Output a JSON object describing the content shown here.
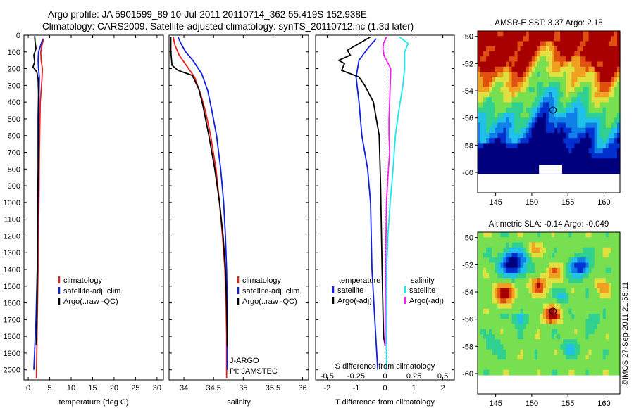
{
  "header": {
    "title_line1": "Argo profile: JA 5901599_89 10-Jul-2011 20110714_362 55.419S 152.938E",
    "title_line2": "Climatology: CARS2009. Satellite-adjusted climatology: synTS_20110712.nc (1.3d later)"
  },
  "colors": {
    "climatology": "#e8201c",
    "satellite": "#1020e0",
    "argo": "#000000",
    "sat_salinity": "#18e8f0",
    "argo_salinity": "#f020f0",
    "map_land_blank": "#ffffff"
  },
  "credit": "©IMOS 27-Sep-2011 21:55:11",
  "depth_ticks": [
    "0",
    "100",
    "200",
    "300",
    "400",
    "500",
    "600",
    "700",
    "800",
    "900",
    "1000",
    "1100",
    "1200",
    "1300",
    "1400",
    "1500",
    "1600",
    "1700",
    "1800",
    "1900",
    "2000"
  ],
  "chart_data": [
    {
      "id": "temperature",
      "type": "line",
      "xlabel": "temperature (deg C)",
      "xlim": [
        -1,
        31.5
      ],
      "ylim": [
        2060,
        0
      ],
      "xticks": [
        "0",
        "5",
        "10",
        "15",
        "20",
        "25",
        "30"
      ],
      "xtick_values": [
        0,
        5,
        10,
        15,
        20,
        25,
        30
      ],
      "legend": [
        {
          "label": "climatology",
          "color": "climatology"
        },
        {
          "label": "satellite-adj. clim.",
          "color": "satellite"
        },
        {
          "label": "Argo(..raw -QC)",
          "color": "argo"
        }
      ],
      "series": [
        {
          "name": "climatology",
          "color": "climatology",
          "points": [
            [
              3.6,
              20
            ],
            [
              3.2,
              60
            ],
            [
              2.9,
              100
            ],
            [
              3.0,
              150
            ],
            [
              3.3,
              200
            ],
            [
              3.2,
              260
            ],
            [
              2.8,
              400
            ],
            [
              2.6,
              700
            ],
            [
              2.5,
              1000
            ],
            [
              2.3,
              1400
            ],
            [
              2.1,
              1700
            ],
            [
              1.9,
              2050
            ]
          ]
        },
        {
          "name": "satellite-adj. clim.",
          "color": "satellite",
          "points": [
            [
              3.4,
              20
            ],
            [
              2.9,
              60
            ],
            [
              2.4,
              100
            ],
            [
              2.3,
              150
            ],
            [
              2.4,
              200
            ],
            [
              2.6,
              250
            ],
            [
              2.5,
              400
            ],
            [
              2.4,
              700
            ],
            [
              2.3,
              1000
            ],
            [
              2.1,
              1400
            ],
            [
              1.8,
              1700
            ],
            [
              1.3,
              2000
            ]
          ]
        },
        {
          "name": "Argo(..raw -QC)",
          "color": "argo",
          "points": [
            [
              1.5,
              5
            ],
            [
              1.6,
              40
            ],
            [
              1.8,
              80
            ],
            [
              1.3,
              120
            ],
            [
              1.5,
              160
            ],
            [
              1.1,
              190
            ],
            [
              2.0,
              220
            ],
            [
              2.3,
              260
            ],
            [
              2.4,
              350
            ],
            [
              2.3,
              500
            ],
            [
              2.3,
              800
            ],
            [
              2.2,
              1000
            ],
            [
              2.1,
              1400
            ],
            [
              2.0,
              1700
            ],
            [
              1.9,
              1850
            ]
          ]
        }
      ]
    },
    {
      "id": "salinity",
      "type": "line",
      "xlabel": "salinity",
      "xlim": [
        33.75,
        36.1
      ],
      "ylim": [
        2060,
        0
      ],
      "xticks": [
        "34",
        "34.5",
        "35",
        "35.5",
        "36"
      ],
      "xtick_values": [
        34,
        34.5,
        35,
        35.5,
        36
      ],
      "legend": [
        {
          "label": "climatology",
          "color": "climatology"
        },
        {
          "label": "satellite-adj. clim.",
          "color": "satellite"
        },
        {
          "label": "Argo(..raw -QC)",
          "color": "argo"
        }
      ],
      "annotation_lines": [
        "J-ARGO",
        "PI: JAMSTEC"
      ],
      "series": [
        {
          "name": "climatology",
          "color": "climatology",
          "points": [
            [
              33.82,
              10
            ],
            [
              33.85,
              60
            ],
            [
              33.92,
              120
            ],
            [
              34.04,
              180
            ],
            [
              34.18,
              250
            ],
            [
              34.28,
              350
            ],
            [
              34.36,
              450
            ],
            [
              34.45,
              600
            ],
            [
              34.54,
              800
            ],
            [
              34.6,
              1000
            ],
            [
              34.65,
              1200
            ],
            [
              34.69,
              1400
            ],
            [
              34.71,
              1600
            ],
            [
              34.72,
              1800
            ],
            [
              34.72,
              2050
            ]
          ]
        },
        {
          "name": "satellite-adj. clim.",
          "color": "satellite",
          "points": [
            [
              33.9,
              10
            ],
            [
              33.95,
              50
            ],
            [
              34.03,
              100
            ],
            [
              34.15,
              150
            ],
            [
              34.3,
              230
            ],
            [
              34.4,
              330
            ],
            [
              34.47,
              450
            ],
            [
              34.55,
              600
            ],
            [
              34.62,
              800
            ],
            [
              34.67,
              1000
            ],
            [
              34.7,
              1200
            ],
            [
              34.72,
              1400
            ],
            [
              34.73,
              1600
            ],
            [
              34.73,
              1800
            ],
            [
              34.73,
              2000
            ]
          ]
        },
        {
          "name": "Argo(..raw -QC)",
          "color": "argo",
          "points": [
            [
              33.78,
              10
            ],
            [
              33.78,
              100
            ],
            [
              33.8,
              180
            ],
            [
              33.9,
              210
            ],
            [
              34.14,
              240
            ],
            [
              34.25,
              320
            ],
            [
              34.32,
              420
            ],
            [
              34.42,
              600
            ],
            [
              34.52,
              800
            ],
            [
              34.6,
              1000
            ],
            [
              34.66,
              1200
            ],
            [
              34.7,
              1400
            ],
            [
              34.72,
              1600
            ],
            [
              34.73,
              1800
            ],
            [
              34.73,
              1860
            ]
          ]
        }
      ]
    },
    {
      "id": "difference",
      "type": "line",
      "xlabel": "T difference from climatology",
      "xlabel_top": "S difference from climatology",
      "xlim": [
        -2.4,
        2.4
      ],
      "ylim": [
        2060,
        0
      ],
      "xticks": [
        "-2",
        "-1",
        "0",
        "1",
        "2"
      ],
      "xtick_values": [
        -2,
        -1,
        0,
        1,
        2
      ],
      "sticks": [
        "-0.5",
        "-0.25",
        "0",
        "0.25",
        "0.5"
      ],
      "stick_values": [
        -0.5,
        -0.25,
        0,
        0.25,
        0.5
      ],
      "legend_t": {
        "title": "temperature",
        "items": [
          {
            "label": "satellite",
            "color": "satellite"
          },
          {
            "label": "Argo(-adj)",
            "color": "argo"
          }
        ]
      },
      "legend_s": {
        "title": "salinity",
        "items": [
          {
            "label": "satellite",
            "color": "sat_salinity"
          },
          {
            "label": "Argo(-adj)",
            "color": "argo_salinity"
          }
        ]
      },
      "series": [
        {
          "name": "T satellite",
          "color": "satellite",
          "points": [
            [
              -0.3,
              20
            ],
            [
              -0.6,
              80
            ],
            [
              -0.9,
              150
            ],
            [
              -1.0,
              250
            ],
            [
              -0.9,
              400
            ],
            [
              -0.8,
              600
            ],
            [
              -0.6,
              800
            ],
            [
              -0.5,
              1000
            ],
            [
              -0.45,
              1400
            ],
            [
              -0.35,
              1700
            ],
            [
              -0.25,
              2000
            ]
          ]
        },
        {
          "name": "T Argo(-adj)",
          "color": "argo",
          "points": [
            [
              -0.5,
              10
            ],
            [
              -0.9,
              50
            ],
            [
              -1.3,
              90
            ],
            [
              -1.2,
              120
            ],
            [
              -1.6,
              150
            ],
            [
              -1.4,
              170
            ],
            [
              -1.5,
              210
            ],
            [
              -0.9,
              250
            ],
            [
              -0.7,
              300
            ],
            [
              -0.4,
              400
            ],
            [
              -0.2,
              600
            ],
            [
              -0.15,
              900
            ],
            [
              -0.1,
              1400
            ],
            [
              -0.05,
              1800
            ],
            [
              0.0,
              1850
            ]
          ]
        },
        {
          "name": "S satellite",
          "color": "sat_salinity",
          "points": [
            [
              0.5,
              10
            ],
            [
              0.8,
              50
            ],
            [
              0.68,
              100
            ],
            [
              0.68,
              200
            ],
            [
              0.62,
              300
            ],
            [
              0.48,
              450
            ],
            [
              0.36,
              600
            ],
            [
              0.28,
              800
            ],
            [
              0.18,
              1000
            ],
            [
              0.1,
              1200
            ],
            [
              0.06,
              1400
            ],
            [
              0.05,
              1600
            ],
            [
              0.05,
              1800
            ],
            [
              0.05,
              2000
            ]
          ]
        },
        {
          "name": "S Argo(-adj)",
          "color": "argo_salinity",
          "points": [
            [
              0.05,
              10
            ],
            [
              -0.05,
              50
            ],
            [
              -0.07,
              80
            ],
            [
              -0.04,
              120
            ],
            [
              0.08,
              160
            ],
            [
              0.2,
              200
            ],
            [
              0.19,
              260
            ],
            [
              0.16,
              400
            ],
            [
              0.14,
              500
            ],
            [
              0.14,
              600
            ],
            [
              0.16,
              700
            ],
            [
              0.12,
              800
            ],
            [
              0.05,
              1000
            ],
            [
              0.02,
              1400
            ],
            [
              0.0,
              1800
            ],
            [
              0.0,
              1860
            ]
          ]
        }
      ]
    },
    {
      "id": "sst_map",
      "type": "heatmap",
      "title": "AMSR-E SST: 3.37  Argo: 2.15",
      "xticks": [
        "145",
        "150",
        "155",
        "160"
      ],
      "xtick_values": [
        145,
        150,
        155,
        160
      ],
      "yticks": [
        "-50",
        "-52",
        "-54",
        "-56",
        "-58",
        "-60"
      ],
      "ytick_values": [
        -50,
        -52,
        -54,
        -56,
        -58,
        -60
      ],
      "xlim": [
        142.5,
        162.2
      ],
      "ylim": [
        -61.5,
        -49.6
      ],
      "data_extent": {
        "lat": [
          -60.1,
          -49.6
        ],
        "lon": [
          142.5,
          162.2
        ]
      },
      "profile_marker": {
        "lon": 152.938,
        "lat": -55.419
      },
      "palette": [
        "#00007f",
        "#0030d0",
        "#1080e8",
        "#20c0e8",
        "#30d090",
        "#78e050",
        "#e0e040",
        "#f0a020",
        "#e05010",
        "#a80000"
      ]
    },
    {
      "id": "sla_map",
      "type": "heatmap",
      "title": "Altimetric SLA: -0.14  Argo: -0.049",
      "xticks": [
        "145",
        "150",
        "155",
        "160"
      ],
      "xtick_values": [
        145,
        150,
        155,
        160
      ],
      "yticks": [
        "-50",
        "-52",
        "-54",
        "-56",
        "-58",
        "-60"
      ],
      "ytick_values": [
        -50,
        -52,
        -54,
        -56,
        -58,
        -60
      ],
      "xlim": [
        142.5,
        162.2
      ],
      "ylim": [
        -61.5,
        -49.6
      ],
      "data_extent": {
        "lat": [
          -60.1,
          -49.6
        ],
        "lon": [
          142.5,
          162.2
        ]
      },
      "profile_marker": {
        "lon": 152.938,
        "lat": -55.419
      },
      "palette": [
        "#00007f",
        "#0030d0",
        "#1080e8",
        "#20c0e8",
        "#30d090",
        "#78e050",
        "#e0e040",
        "#f0a020",
        "#e05010",
        "#a80000"
      ]
    }
  ]
}
